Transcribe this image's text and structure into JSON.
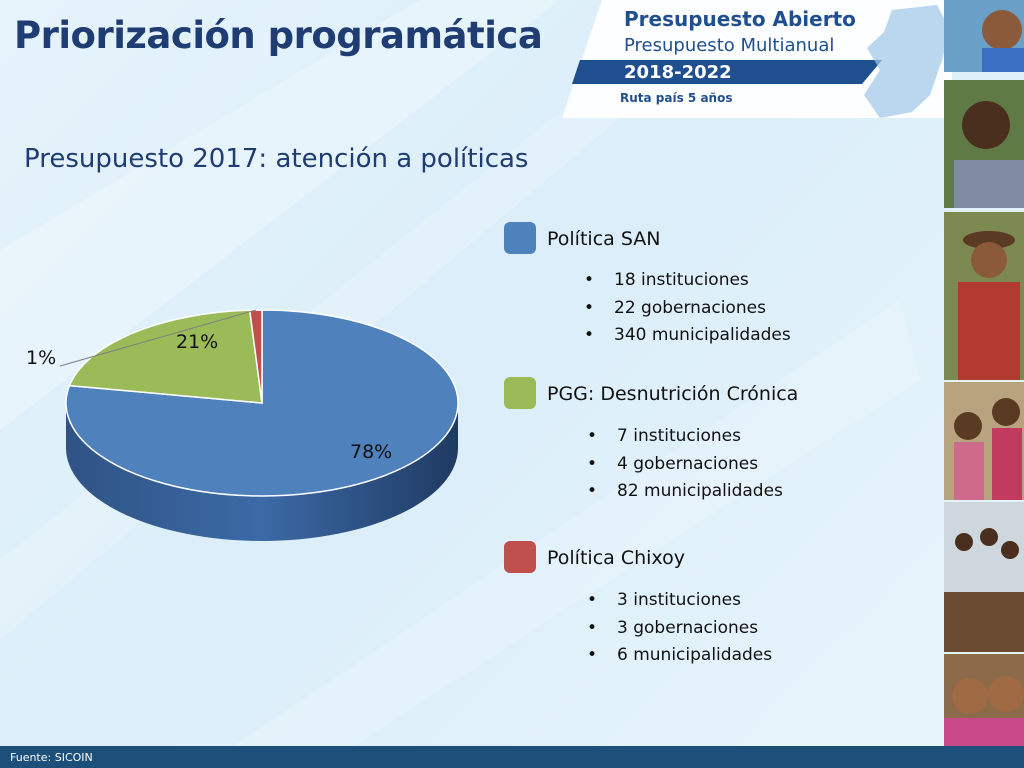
{
  "slide": {
    "title": "Priorización programática",
    "subtitle": "Presupuesto 2017: atención a políticas",
    "footer": "Fuente: SICOIN"
  },
  "banner": {
    "line1": "Presupuesto Abierto",
    "line2": "Presupuesto Multianual",
    "years": "2018-2022",
    "tagline": "Ruta país 5 años"
  },
  "chart_data": {
    "type": "pie",
    "title": "Presupuesto 2017: atención a políticas",
    "three_d": true,
    "categories": [
      "Política SAN",
      "PGG: Desnutrición Crónica",
      "Política Chixoy"
    ],
    "values": [
      78,
      21,
      1
    ],
    "labels": [
      "78%",
      "21%",
      "1%"
    ],
    "colors": [
      "#4f81bd",
      "#9bbb59",
      "#c0504d"
    ],
    "legend_position": "right"
  },
  "legend": [
    {
      "label": "Política SAN",
      "color": "#4f81bd",
      "bullets": [
        "18 instituciones",
        "22 gobernaciones",
        "340 municipalidades"
      ]
    },
    {
      "label": "PGG: Desnutrición Crónica",
      "color": "#9bbb59",
      "bullets": [
        "7 instituciones",
        "4 gobernaciones",
        "82 municipalidades"
      ]
    },
    {
      "label": "Política Chixoy",
      "color": "#c0504d",
      "bullets": [
        "3 instituciones",
        "3 gobernaciones",
        "6 municipalidades"
      ]
    }
  ]
}
